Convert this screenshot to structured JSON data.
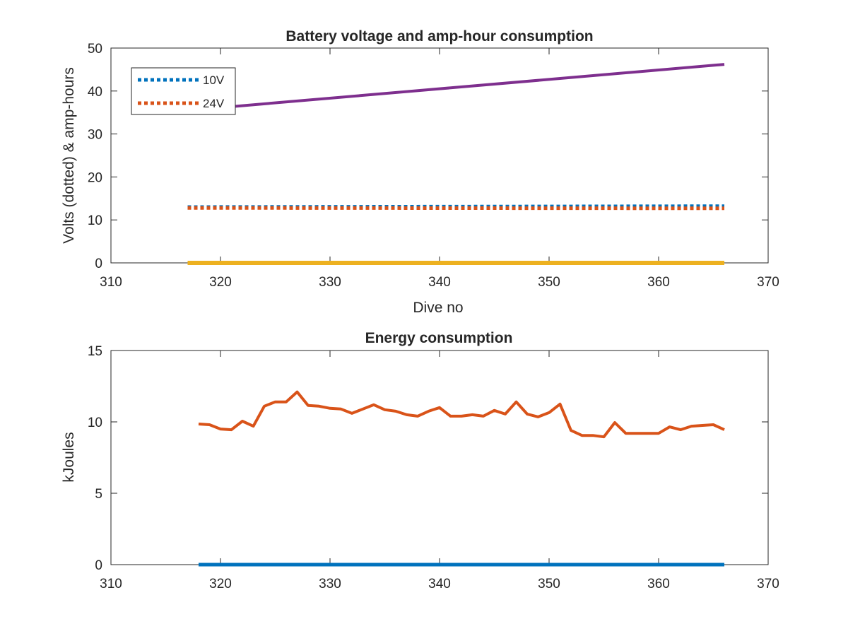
{
  "chart_data": [
    {
      "type": "line",
      "title": "Battery voltage and amp-hour consumption",
      "xlabel": "Dive no",
      "ylabel": "Volts (dotted) & amp-hours",
      "xlim": [
        310,
        370
      ],
      "ylim": [
        0,
        50
      ],
      "xticks": [
        "310",
        "320",
        "330",
        "340",
        "350",
        "360",
        "370"
      ],
      "yticks": [
        "0",
        "10",
        "20",
        "30",
        "40",
        "50"
      ],
      "legend_position": "top-left",
      "series": [
        {
          "name": "10V",
          "style": "dotted",
          "color": "#0072BD",
          "x": [
            317,
            366
          ],
          "y": [
            13.0,
            13.2
          ]
        },
        {
          "name": "24V",
          "style": "dotted",
          "color": "#D95319",
          "x": [
            317,
            366
          ],
          "y": [
            12.8,
            12.7
          ]
        },
        {
          "style": "solid",
          "color": "#7E2F8E",
          "x": [
            317,
            366
          ],
          "y": [
            35.5,
            46.2
          ]
        },
        {
          "style": "solid",
          "color": "#EDB120",
          "x": [
            317,
            366
          ],
          "y": [
            0,
            0
          ]
        }
      ]
    },
    {
      "type": "line",
      "title": "Energy consumption",
      "xlabel": "",
      "ylabel": "kJoules",
      "xlim": [
        310,
        370
      ],
      "ylim": [
        0,
        15
      ],
      "xticks": [
        "310",
        "320",
        "330",
        "340",
        "350",
        "360",
        "370"
      ],
      "yticks": [
        "0",
        "5",
        "10",
        "15"
      ],
      "series": [
        {
          "style": "solid",
          "color": "#0072BD",
          "x": [
            318,
            366
          ],
          "y": [
            0,
            0
          ]
        },
        {
          "style": "solid",
          "color": "#D95319",
          "x": [
            318,
            319,
            320,
            321,
            322,
            323,
            324,
            325,
            326,
            327,
            328,
            329,
            330,
            331,
            332,
            333,
            334,
            335,
            336,
            337,
            338,
            339,
            340,
            341,
            342,
            343,
            344,
            345,
            346,
            347,
            348,
            349,
            350,
            351,
            352,
            353,
            354,
            355,
            356,
            357,
            358,
            359,
            360,
            361,
            362,
            363,
            364,
            365,
            366
          ],
          "y": [
            9.85,
            9.8,
            9.5,
            9.45,
            10.05,
            9.7,
            11.1,
            11.4,
            11.4,
            12.1,
            11.15,
            11.1,
            10.95,
            10.9,
            10.6,
            10.9,
            11.2,
            10.85,
            10.75,
            10.5,
            10.4,
            10.75,
            11.0,
            10.4,
            10.4,
            10.5,
            10.4,
            10.8,
            10.55,
            11.4,
            10.55,
            10.35,
            10.65,
            11.25,
            9.4,
            9.05,
            9.05,
            8.95,
            9.95,
            9.2,
            9.2,
            9.2,
            9.2,
            9.65,
            9.45,
            9.7,
            9.75,
            9.8,
            9.45
          ]
        }
      ]
    }
  ]
}
